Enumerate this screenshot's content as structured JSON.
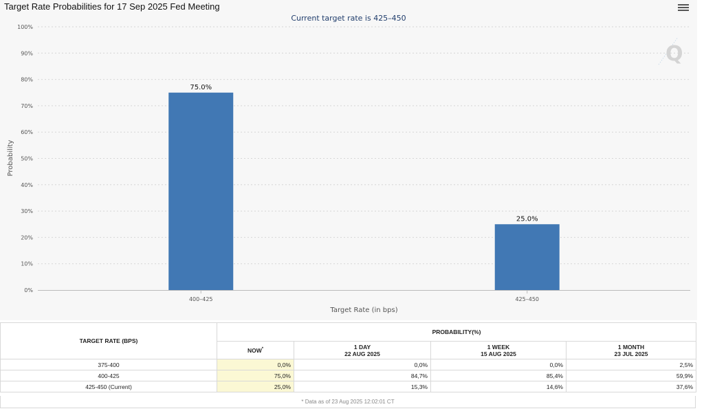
{
  "chart": {
    "title": "Target Rate Probabilities for 17 Sep 2025 Fed Meeting",
    "subtitle": "Current target rate is 425–450",
    "menu_icon": "hamburger-menu-icon",
    "watermark_icon": "q-logo-icon",
    "bar_color": "#4178b4"
  },
  "chart_data": {
    "type": "bar",
    "title": "Target Rate Probabilities for 17 Sep 2025 Fed Meeting",
    "subtitle": "Current target rate is 425–450",
    "categories": [
      "400–425",
      "425–450"
    ],
    "values": [
      75.0,
      25.0
    ],
    "data_labels": [
      "75.0%",
      "25.0%"
    ],
    "xlabel": "Target Rate (in bps)",
    "ylabel": "Probability",
    "ylim": [
      0,
      100
    ],
    "yticks": [
      "0%",
      "10%",
      "20%",
      "30%",
      "40%",
      "50%",
      "60%",
      "70%",
      "80%",
      "90%",
      "100%"
    ],
    "grid": true
  },
  "table": {
    "rate_header": "TARGET RATE (BPS)",
    "prob_header": "PROBABILITY(%)",
    "columns": [
      {
        "label": "NOW",
        "sup": "*",
        "date": ""
      },
      {
        "label": "1 DAY",
        "date": "22 AUG 2025"
      },
      {
        "label": "1 WEEK",
        "date": "15 AUG 2025"
      },
      {
        "label": "1 MONTH",
        "date": "23 JUL 2025"
      }
    ],
    "rows": [
      {
        "rate": "375-400",
        "values": [
          "0,0%",
          "0,0%",
          "0,0%",
          "2,5%"
        ]
      },
      {
        "rate": "400-425",
        "values": [
          "75,0%",
          "84,7%",
          "85,4%",
          "59,9%"
        ]
      },
      {
        "rate": "425-450 (Current)",
        "values": [
          "25,0%",
          "15,3%",
          "14,6%",
          "37,6%"
        ]
      }
    ],
    "footnote": "* Data as of 23 Aug 2025 12:02:01 CT"
  }
}
